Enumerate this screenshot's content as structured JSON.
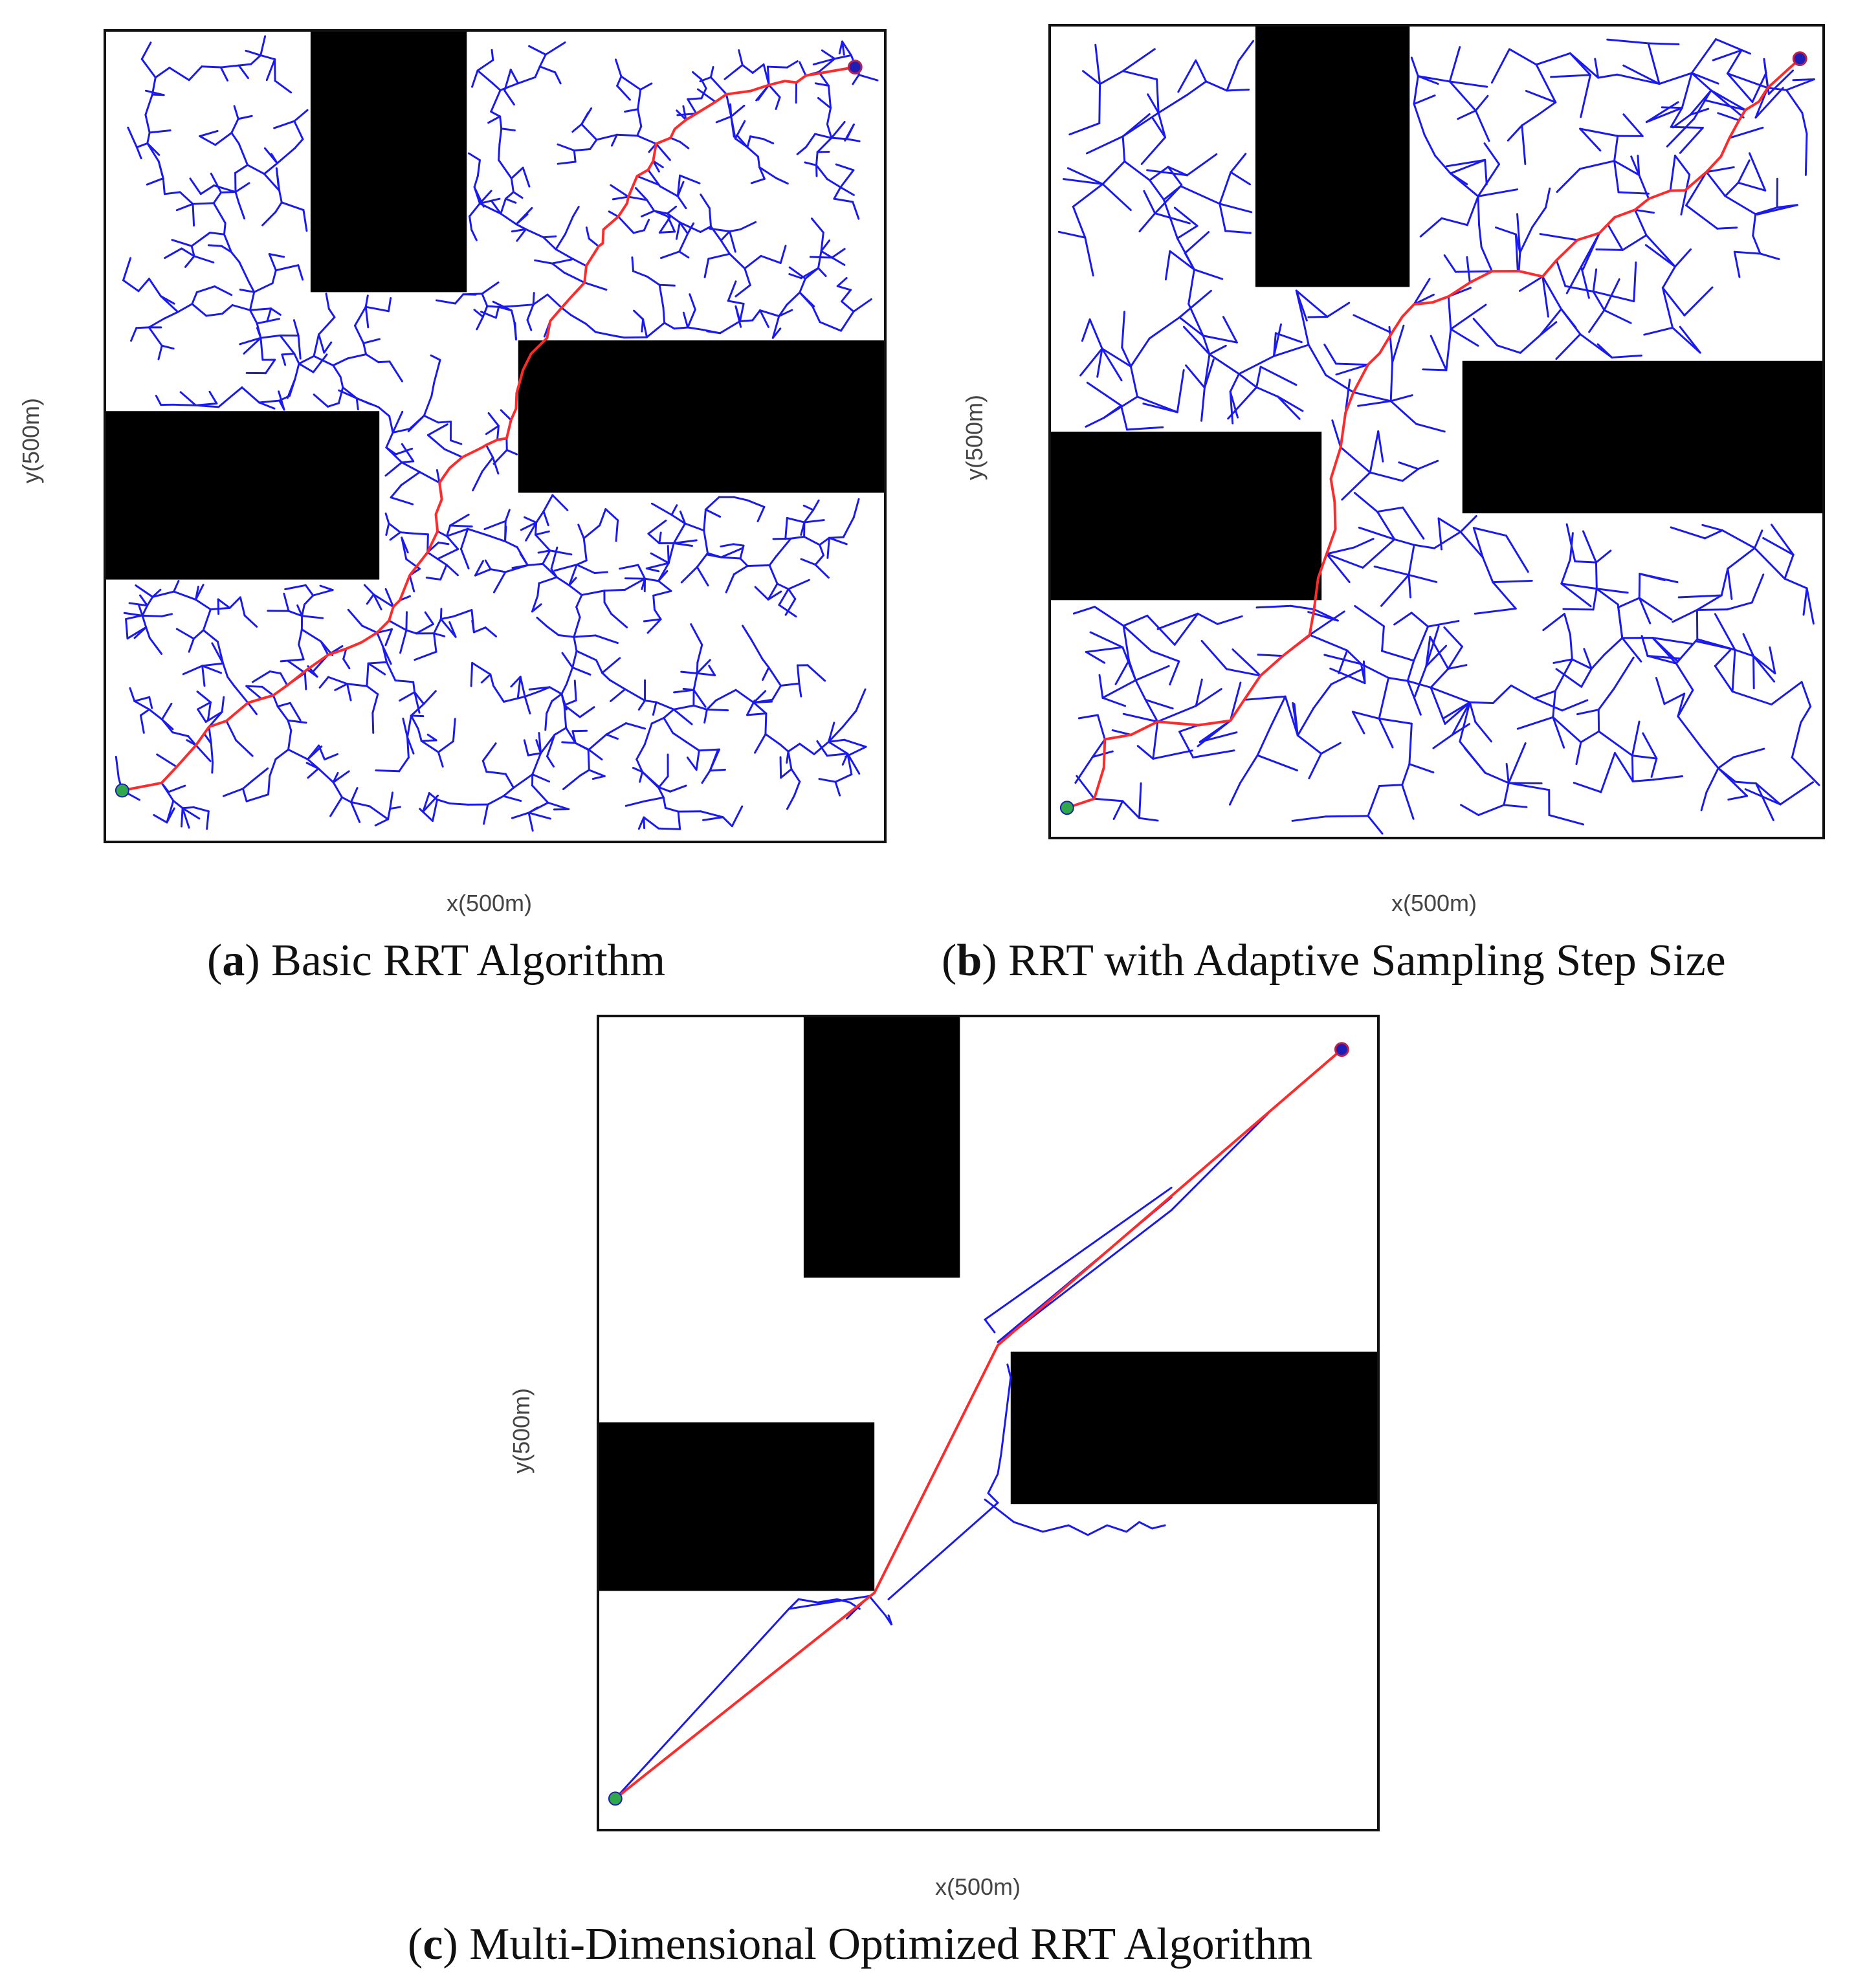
{
  "panels": [
    {
      "id": "a",
      "letter": "a",
      "caption": ") Basic RRT Algorithm",
      "xlabel": "x(500m)",
      "ylabel": "y(500m)",
      "tree_density": "dense",
      "path_color": "#ff2a2a",
      "tree_color": "#1a1aee",
      "obstacle_color": "#000000",
      "start_color": "#2ea84a",
      "goal_color": "#1d1db8"
    },
    {
      "id": "b",
      "letter": "b",
      "caption": ") RRT with Adaptive Sampling Step Size",
      "xlabel": "x(500m)",
      "ylabel": "y(500m)",
      "tree_density": "medium",
      "path_color": "#ff2a2a",
      "tree_color": "#1a1aee",
      "obstacle_color": "#000000",
      "start_color": "#2ea84a",
      "goal_color": "#1d1db8"
    },
    {
      "id": "c",
      "letter": "c",
      "caption": ") Multi-Dimensional Optimized RRT Algorithm",
      "xlabel": "x(500m)",
      "ylabel": "y(500m)",
      "tree_density": "sparse",
      "path_color": "#ff2a2a",
      "tree_color": "#1a1aee",
      "obstacle_color": "#000000",
      "start_color": "#2ea84a",
      "goal_color": "#1d1db8"
    }
  ]
}
